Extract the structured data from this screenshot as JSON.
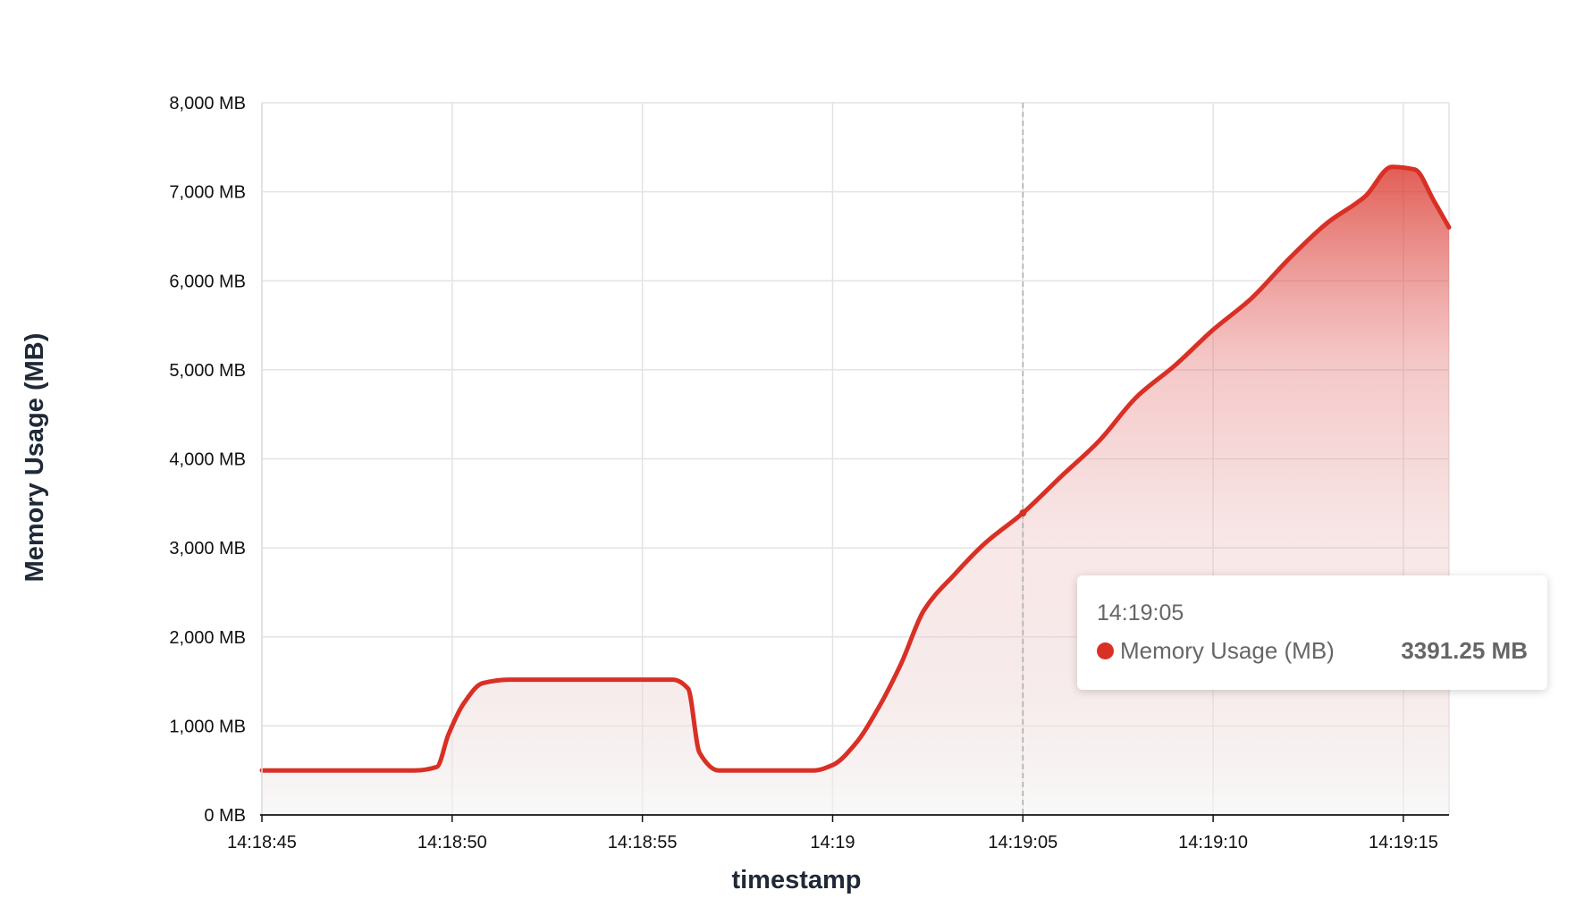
{
  "chart_data": {
    "type": "area",
    "title": "",
    "xlabel": "timestamp",
    "ylabel": "Memory Usage (MB)",
    "ylim": [
      0,
      8000
    ],
    "xlim": [
      "14:18:45",
      "14:19:16.2"
    ],
    "y_ticks": [
      0,
      1000,
      2000,
      3000,
      4000,
      5000,
      6000,
      7000,
      8000
    ],
    "y_tick_labels": [
      "0 MB",
      "1,000 MB",
      "2,000 MB",
      "3,000 MB",
      "4,000 MB",
      "5,000 MB",
      "6,000 MB",
      "7,000 MB",
      "8,000 MB"
    ],
    "x_ticks": [
      "14:18:45",
      "14:18:50",
      "14:18:55",
      "14:19:00",
      "14:19:05",
      "14:19:10",
      "14:19:15"
    ],
    "x_tick_labels": [
      "14:18:45",
      "14:18:50",
      "14:18:55",
      "14:19",
      "14:19:05",
      "14:19:10",
      "14:19:15"
    ],
    "grid": true,
    "legend": "none",
    "series": [
      {
        "name": "Memory Usage (MB)",
        "color": "#d93025",
        "x": [
          "14:18:45",
          "14:18:49",
          "14:18:49.6",
          "14:18:49.9",
          "14:18:50.3",
          "14:18:50.8",
          "14:18:51.5",
          "14:18:55.8",
          "14:18:56.2",
          "14:18:56.5",
          "14:18:57",
          "14:18:59.5",
          "14:19:00",
          "14:19:00.6",
          "14:19:01.2",
          "14:19:01.8",
          "14:19:02.4",
          "14:19:03.2",
          "14:19:04",
          "14:19:05",
          "14:19:06",
          "14:19:07",
          "14:19:08",
          "14:19:09",
          "14:19:10",
          "14:19:11",
          "14:19:12",
          "14:19:13",
          "14:19:14",
          "14:19:14.7",
          "14:19:15.3",
          "14:19:15.8",
          "14:19:16.2"
        ],
        "values": [
          500,
          500,
          540,
          900,
          1250,
          1480,
          1520,
          1520,
          1420,
          700,
          500,
          500,
          560,
          800,
          1200,
          1700,
          2300,
          2700,
          3050,
          3391.25,
          3800,
          4200,
          4700,
          5050,
          5450,
          5800,
          6250,
          6650,
          6950,
          7280,
          7250,
          6900,
          6600
        ]
      }
    ],
    "hover": {
      "x": "14:19:05",
      "value": 3391.25
    }
  },
  "tooltip": {
    "time": "14:19:05",
    "series_name": "Memory Usage (MB)",
    "value_text": "3391.25 MB",
    "color": "#d93025"
  }
}
